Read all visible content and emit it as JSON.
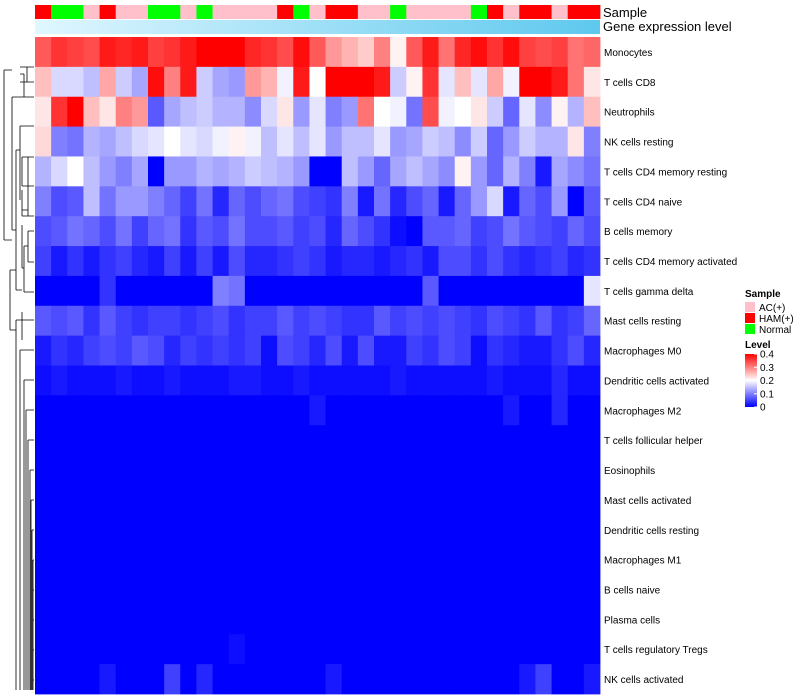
{
  "chart_data": {
    "type": "heatmap",
    "title": "",
    "annotation_tracks": [
      "Sample",
      "Gene expression level"
    ],
    "rows": [
      "Monocytes",
      "T cells CD8",
      "Neutrophils",
      "NK cells resting",
      "T cells CD4 memory resting",
      "T cells CD4 naive",
      "B cells memory",
      "T cells CD4 memory activated",
      "T cells gamma delta",
      "Mast cells resting",
      "Macrophages M0",
      "Dendritic cells activated",
      "Macrophages M2",
      "T cells follicular helper",
      "Eosinophils",
      "Mast cells activated",
      "Dendritic cells resting",
      "Macrophages M1",
      "B cells naive",
      "Plasma cells",
      "T cells regulatory  Tregs",
      "NK cells activated"
    ],
    "sample_groups": [
      "HAM",
      "Normal",
      "Normal",
      "AC",
      "HAM",
      "AC",
      "AC",
      "Normal",
      "Normal",
      "AC",
      "Normal",
      "AC",
      "AC",
      "AC",
      "AC",
      "HAM",
      "Normal",
      "AC",
      "HAM",
      "HAM",
      "AC",
      "AC",
      "Normal",
      "AC",
      "AC",
      "AC",
      "AC",
      "Normal",
      "HAM",
      "AC",
      "HAM",
      "HAM",
      "AC",
      "HAM",
      "HAM"
    ],
    "values": [
      [
        0.33,
        0.36,
        0.35,
        0.34,
        0.38,
        0.37,
        0.38,
        0.35,
        0.36,
        0.38,
        0.4,
        0.41,
        0.42,
        0.37,
        0.36,
        0.34,
        0.39,
        0.33,
        0.28,
        0.26,
        0.24,
        0.3,
        0.21,
        0.33,
        0.38,
        0.31,
        0.37,
        0.39,
        0.36,
        0.39,
        0.35,
        0.34,
        0.35,
        0.31,
        0.32
      ],
      [
        0.25,
        0.17,
        0.17,
        0.15,
        0.27,
        0.16,
        0.13,
        0.39,
        0.3,
        0.38,
        0.16,
        0.13,
        0.12,
        0.28,
        0.26,
        0.19,
        0.38,
        0.2,
        0.4,
        0.4,
        0.41,
        0.38,
        0.16,
        0.21,
        0.36,
        0.18,
        0.25,
        0.18,
        0.27,
        0.19,
        0.4,
        0.4,
        0.38,
        0.31,
        0.22
      ],
      [
        0.22,
        0.36,
        0.42,
        0.25,
        0.22,
        0.3,
        0.28,
        0.07,
        0.13,
        0.15,
        0.16,
        0.14,
        0.14,
        0.11,
        0.17,
        0.22,
        0.12,
        0.18,
        0.1,
        0.12,
        0.31,
        0.2,
        0.19,
        0.09,
        0.34,
        0.19,
        0.2,
        0.22,
        0.16,
        0.08,
        0.18,
        0.11,
        0.21,
        0.14,
        0.25
      ],
      [
        0.23,
        0.1,
        0.09,
        0.14,
        0.13,
        0.15,
        0.17,
        0.18,
        0.2,
        0.18,
        0.17,
        0.19,
        0.21,
        0.19,
        0.15,
        0.18,
        0.15,
        0.18,
        0.12,
        0.15,
        0.15,
        0.18,
        0.12,
        0.13,
        0.16,
        0.15,
        0.11,
        0.16,
        0.08,
        0.12,
        0.16,
        0.14,
        0.14,
        0.22,
        0.1
      ],
      [
        0.14,
        0.17,
        0.2,
        0.15,
        0.12,
        0.1,
        0.13,
        0.0,
        0.12,
        0.12,
        0.14,
        0.13,
        0.14,
        0.16,
        0.15,
        0.14,
        0.12,
        0.0,
        0.0,
        0.15,
        0.12,
        0.08,
        0.13,
        0.15,
        0.13,
        0.11,
        0.21,
        0.12,
        0.08,
        0.14,
        0.1,
        0.02,
        0.13,
        0.11,
        0.09
      ],
      [
        0.1,
        0.06,
        0.07,
        0.15,
        0.09,
        0.12,
        0.12,
        0.1,
        0.08,
        0.05,
        0.09,
        0.03,
        0.08,
        0.06,
        0.08,
        0.09,
        0.06,
        0.05,
        0.04,
        0.1,
        0.02,
        0.09,
        0.03,
        0.06,
        0.08,
        0.02,
        0.08,
        0.12,
        0.17,
        0.02,
        0.08,
        0.06,
        0.12,
        0.0,
        0.07
      ],
      [
        0.06,
        0.07,
        0.09,
        0.08,
        0.06,
        0.09,
        0.05,
        0.08,
        0.09,
        0.04,
        0.07,
        0.06,
        0.09,
        0.06,
        0.06,
        0.07,
        0.05,
        0.06,
        0.03,
        0.08,
        0.06,
        0.04,
        0.01,
        0.0,
        0.07,
        0.07,
        0.08,
        0.05,
        0.06,
        0.09,
        0.07,
        0.06,
        0.05,
        0.08,
        0.06
      ],
      [
        0.05,
        0.02,
        0.04,
        0.02,
        0.04,
        0.05,
        0.03,
        0.02,
        0.05,
        0.02,
        0.05,
        0.02,
        0.06,
        0.03,
        0.03,
        0.04,
        0.05,
        0.04,
        0.02,
        0.03,
        0.03,
        0.02,
        0.03,
        0.04,
        0.02,
        0.06,
        0.06,
        0.04,
        0.06,
        0.04,
        0.03,
        0.04,
        0.05,
        0.03,
        0.04
      ],
      [
        0.0,
        0.0,
        0.0,
        0.0,
        0.04,
        0.0,
        0.0,
        0.0,
        0.0,
        0.0,
        0.0,
        0.1,
        0.09,
        0.0,
        0.0,
        0.0,
        0.0,
        0.0,
        0.0,
        0.0,
        0.0,
        0.0,
        0.0,
        0.0,
        0.07,
        0.0,
        0.0,
        0.0,
        0.0,
        0.0,
        0.0,
        0.0,
        0.0,
        0.0,
        0.18
      ],
      [
        0.07,
        0.06,
        0.07,
        0.04,
        0.07,
        0.05,
        0.04,
        0.05,
        0.05,
        0.04,
        0.05,
        0.06,
        0.04,
        0.05,
        0.05,
        0.07,
        0.05,
        0.06,
        0.05,
        0.04,
        0.04,
        0.07,
        0.05,
        0.06,
        0.05,
        0.06,
        0.05,
        0.04,
        0.06,
        0.05,
        0.04,
        0.07,
        0.04,
        0.05,
        0.08
      ],
      [
        0.02,
        0.04,
        0.03,
        0.05,
        0.06,
        0.05,
        0.07,
        0.06,
        0.03,
        0.05,
        0.04,
        0.05,
        0.04,
        0.05,
        0.01,
        0.06,
        0.05,
        0.03,
        0.06,
        0.02,
        0.06,
        0.02,
        0.02,
        0.05,
        0.04,
        0.06,
        0.05,
        0.01,
        0.04,
        0.03,
        0.02,
        0.02,
        0.04,
        0.06,
        0.03
      ],
      [
        0.01,
        0.02,
        0.01,
        0.01,
        0.01,
        0.02,
        0.01,
        0.01,
        0.02,
        0.01,
        0.01,
        0.01,
        0.02,
        0.02,
        0.01,
        0.01,
        0.02,
        0.01,
        0.01,
        0.01,
        0.01,
        0.01,
        0.02,
        0.01,
        0.01,
        0.01,
        0.01,
        0.01,
        0.02,
        0.01,
        0.01,
        0.01,
        0.03,
        0.01,
        0.01
      ],
      [
        0.0,
        0.0,
        0.0,
        0.0,
        0.0,
        0.0,
        0.0,
        0.0,
        0.0,
        0.0,
        0.0,
        0.0,
        0.0,
        0.0,
        0.0,
        0.0,
        0.0,
        0.02,
        0.0,
        0.0,
        0.0,
        0.0,
        0.0,
        0.0,
        0.0,
        0.0,
        0.0,
        0.0,
        0.0,
        0.02,
        0.0,
        0.0,
        0.03,
        0.0,
        0.0
      ],
      [
        0.0,
        0.0,
        0.0,
        0.0,
        0.0,
        0.0,
        0.0,
        0.0,
        0.0,
        0.0,
        0.0,
        0.0,
        0.0,
        0.0,
        0.0,
        0.0,
        0.0,
        0.0,
        0.0,
        0.0,
        0.0,
        0.0,
        0.0,
        0.0,
        0.0,
        0.0,
        0.0,
        0.0,
        0.0,
        0.0,
        0.0,
        0.0,
        0.0,
        0.0,
        0.0
      ],
      [
        0.0,
        0.0,
        0.0,
        0.0,
        0.0,
        0.0,
        0.0,
        0.0,
        0.0,
        0.0,
        0.0,
        0.0,
        0.0,
        0.0,
        0.0,
        0.0,
        0.0,
        0.0,
        0.0,
        0.0,
        0.0,
        0.0,
        0.0,
        0.0,
        0.0,
        0.0,
        0.0,
        0.0,
        0.0,
        0.0,
        0.0,
        0.0,
        0.0,
        0.0,
        0.0
      ],
      [
        0.0,
        0.0,
        0.0,
        0.0,
        0.0,
        0.0,
        0.0,
        0.0,
        0.0,
        0.0,
        0.0,
        0.0,
        0.0,
        0.0,
        0.0,
        0.0,
        0.0,
        0.0,
        0.0,
        0.0,
        0.0,
        0.0,
        0.0,
        0.0,
        0.0,
        0.0,
        0.0,
        0.0,
        0.0,
        0.0,
        0.0,
        0.0,
        0.0,
        0.0,
        0.0
      ],
      [
        0.0,
        0.0,
        0.0,
        0.0,
        0.0,
        0.0,
        0.0,
        0.0,
        0.0,
        0.0,
        0.0,
        0.0,
        0.0,
        0.0,
        0.0,
        0.0,
        0.0,
        0.0,
        0.0,
        0.0,
        0.0,
        0.0,
        0.0,
        0.0,
        0.0,
        0.0,
        0.0,
        0.0,
        0.0,
        0.0,
        0.0,
        0.0,
        0.0,
        0.0,
        0.0
      ],
      [
        0.0,
        0.0,
        0.0,
        0.0,
        0.0,
        0.0,
        0.0,
        0.0,
        0.0,
        0.0,
        0.0,
        0.0,
        0.0,
        0.0,
        0.0,
        0.0,
        0.0,
        0.0,
        0.0,
        0.0,
        0.0,
        0.0,
        0.0,
        0.0,
        0.0,
        0.0,
        0.0,
        0.0,
        0.0,
        0.0,
        0.0,
        0.0,
        0.0,
        0.0,
        0.0
      ],
      [
        0.0,
        0.0,
        0.0,
        0.0,
        0.0,
        0.0,
        0.0,
        0.0,
        0.0,
        0.0,
        0.0,
        0.0,
        0.0,
        0.0,
        0.0,
        0.0,
        0.0,
        0.0,
        0.0,
        0.0,
        0.0,
        0.0,
        0.0,
        0.0,
        0.0,
        0.0,
        0.0,
        0.0,
        0.0,
        0.0,
        0.0,
        0.0,
        0.0,
        0.0,
        0.0
      ],
      [
        0.0,
        0.0,
        0.0,
        0.0,
        0.0,
        0.0,
        0.0,
        0.0,
        0.0,
        0.0,
        0.0,
        0.0,
        0.0,
        0.0,
        0.0,
        0.0,
        0.0,
        0.0,
        0.0,
        0.0,
        0.0,
        0.0,
        0.0,
        0.0,
        0.0,
        0.0,
        0.0,
        0.0,
        0.0,
        0.0,
        0.0,
        0.0,
        0.0,
        0.0,
        0.0
      ],
      [
        0.0,
        0.0,
        0.0,
        0.0,
        0.0,
        0.0,
        0.0,
        0.0,
        0.0,
        0.0,
        0.0,
        0.0,
        0.01,
        0.0,
        0.0,
        0.0,
        0.0,
        0.0,
        0.0,
        0.0,
        0.0,
        0.0,
        0.0,
        0.0,
        0.0,
        0.0,
        0.0,
        0.0,
        0.0,
        0.0,
        0.0,
        0.0,
        0.0,
        0.0,
        0.0
      ],
      [
        0.0,
        0.0,
        0.0,
        0.0,
        0.02,
        0.0,
        0.0,
        0.0,
        0.05,
        0.0,
        0.03,
        0.0,
        0.0,
        0.0,
        0.0,
        0.0,
        0.0,
        0.0,
        0.02,
        0.0,
        0.0,
        0.0,
        0.0,
        0.0,
        0.0,
        0.0,
        0.0,
        0.0,
        0.0,
        0.0,
        0.02,
        0.05,
        0.0,
        0.0,
        0.02
      ]
    ],
    "legend": {
      "sample_title": "Sample",
      "sample_entries": [
        {
          "key": "AC",
          "label": "AC(+)",
          "color": "#FFC0CB"
        },
        {
          "key": "HAM",
          "label": "HAM(+)",
          "color": "#FF0000"
        },
        {
          "key": "Normal",
          "label": "Normal",
          "color": "#00FF00"
        }
      ],
      "level_title": "Level",
      "level_ticks": [
        "0.4",
        "0.3",
        "0.2",
        "0.1",
        "0"
      ],
      "level_tick_values": [
        0.4,
        0.3,
        0.2,
        0.1,
        0.0
      ]
    },
    "color_scale": {
      "min": 0,
      "mid": 0.2,
      "max": 0.4,
      "low": "#0000FF",
      "midColor": "#FFFFFF",
      "high": "#FF0000"
    },
    "gene_expression_bar_colors": [
      "#E0F7FF",
      "#5EC8EE"
    ],
    "ylim": [
      0,
      0.4
    ]
  }
}
